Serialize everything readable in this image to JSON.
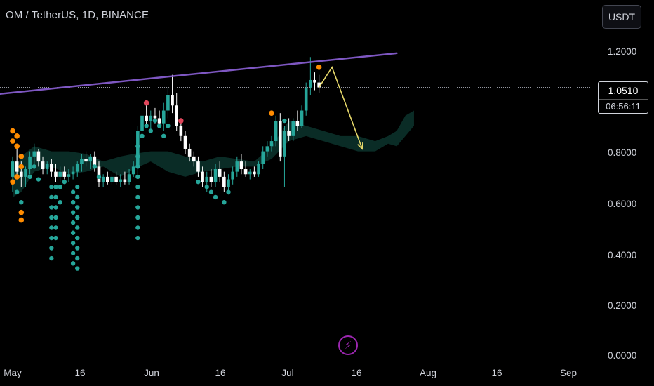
{
  "header": {
    "symbol_title": "OM / TetherUS, 1D, BINANCE",
    "currency_label": "USDT"
  },
  "price_label": {
    "price": "1.0510",
    "countdown": "06:56:11"
  },
  "icons": {
    "alert": "lightning-bolt-icon"
  },
  "colors": {
    "up": "#26a69a",
    "down": "#ffffff",
    "trendline": "#7e57c2",
    "projection": "#e6d86a",
    "dot_green": "#26a69a",
    "dot_orange": "#ff8c00",
    "dot_red": "#e0455a",
    "cloud": "#0d3b33"
  },
  "chart_data": {
    "type": "candlestick",
    "title": "OM / TetherUS, 1D, BINANCE",
    "xlabel": "",
    "ylabel": "",
    "ylim": [
      0,
      1.25
    ],
    "y_ticks": [
      "1.2000",
      "1.0510",
      "0.8000",
      "0.6000",
      "0.4000",
      "0.2000",
      "0.0000"
    ],
    "x_ticks": [
      {
        "label": "May",
        "day": 1
      },
      {
        "label": "16",
        "day": 16
      },
      {
        "label": "Jun",
        "day": 32
      },
      {
        "label": "16",
        "day": 47
      },
      {
        "label": "Jul",
        "day": 62
      },
      {
        "label": "16",
        "day": 77
      },
      {
        "label": "Aug",
        "day": 93
      },
      {
        "label": "16",
        "day": 108
      },
      {
        "label": "Sep",
        "day": 124
      }
    ],
    "last_price": 1.051,
    "candles": [
      {
        "d": 1,
        "o": 0.7,
        "h": 0.78,
        "l": 0.64,
        "c": 0.76
      },
      {
        "d": 2,
        "o": 0.76,
        "h": 0.82,
        "l": 0.7,
        "c": 0.72
      },
      {
        "d": 3,
        "o": 0.72,
        "h": 0.76,
        "l": 0.66,
        "c": 0.7
      },
      {
        "d": 4,
        "o": 0.7,
        "h": 0.74,
        "l": 0.66,
        "c": 0.73
      },
      {
        "d": 5,
        "o": 0.73,
        "h": 0.8,
        "l": 0.71,
        "c": 0.78
      },
      {
        "d": 6,
        "o": 0.78,
        "h": 0.83,
        "l": 0.75,
        "c": 0.8
      },
      {
        "d": 7,
        "o": 0.8,
        "h": 0.81,
        "l": 0.74,
        "c": 0.76
      },
      {
        "d": 8,
        "o": 0.76,
        "h": 0.78,
        "l": 0.71,
        "c": 0.73
      },
      {
        "d": 9,
        "o": 0.73,
        "h": 0.76,
        "l": 0.71,
        "c": 0.75
      },
      {
        "d": 10,
        "o": 0.75,
        "h": 0.77,
        "l": 0.7,
        "c": 0.72
      },
      {
        "d": 11,
        "o": 0.72,
        "h": 0.75,
        "l": 0.68,
        "c": 0.7
      },
      {
        "d": 12,
        "o": 0.7,
        "h": 0.74,
        "l": 0.68,
        "c": 0.72
      },
      {
        "d": 13,
        "o": 0.72,
        "h": 0.74,
        "l": 0.69,
        "c": 0.7
      },
      {
        "d": 14,
        "o": 0.7,
        "h": 0.73,
        "l": 0.68,
        "c": 0.71
      },
      {
        "d": 15,
        "o": 0.71,
        "h": 0.74,
        "l": 0.69,
        "c": 0.72
      },
      {
        "d": 16,
        "o": 0.72,
        "h": 0.76,
        "l": 0.7,
        "c": 0.75
      },
      {
        "d": 17,
        "o": 0.75,
        "h": 0.79,
        "l": 0.72,
        "c": 0.77
      },
      {
        "d": 18,
        "o": 0.77,
        "h": 0.8,
        "l": 0.74,
        "c": 0.76
      },
      {
        "d": 19,
        "o": 0.76,
        "h": 0.79,
        "l": 0.73,
        "c": 0.78
      },
      {
        "d": 20,
        "o": 0.78,
        "h": 0.8,
        "l": 0.72,
        "c": 0.74
      },
      {
        "d": 21,
        "o": 0.74,
        "h": 0.76,
        "l": 0.66,
        "c": 0.68
      },
      {
        "d": 22,
        "o": 0.68,
        "h": 0.71,
        "l": 0.66,
        "c": 0.7
      },
      {
        "d": 23,
        "o": 0.7,
        "h": 0.72,
        "l": 0.67,
        "c": 0.68
      },
      {
        "d": 24,
        "o": 0.68,
        "h": 0.71,
        "l": 0.67,
        "c": 0.7
      },
      {
        "d": 25,
        "o": 0.7,
        "h": 0.72,
        "l": 0.67,
        "c": 0.68
      },
      {
        "d": 26,
        "o": 0.68,
        "h": 0.71,
        "l": 0.66,
        "c": 0.69
      },
      {
        "d": 27,
        "o": 0.69,
        "h": 0.72,
        "l": 0.67,
        "c": 0.68
      },
      {
        "d": 28,
        "o": 0.68,
        "h": 0.73,
        "l": 0.67,
        "c": 0.71
      },
      {
        "d": 29,
        "o": 0.71,
        "h": 0.76,
        "l": 0.7,
        "c": 0.74
      },
      {
        "d": 30,
        "o": 0.74,
        "h": 0.9,
        "l": 0.7,
        "c": 0.88
      },
      {
        "d": 31,
        "o": 0.88,
        "h": 0.97,
        "l": 0.82,
        "c": 0.94
      },
      {
        "d": 32,
        "o": 0.94,
        "h": 0.98,
        "l": 0.9,
        "c": 0.92
      },
      {
        "d": 33,
        "o": 0.92,
        "h": 0.96,
        "l": 0.88,
        "c": 0.94
      },
      {
        "d": 34,
        "o": 0.94,
        "h": 0.97,
        "l": 0.91,
        "c": 0.93
      },
      {
        "d": 35,
        "o": 0.93,
        "h": 0.96,
        "l": 0.89,
        "c": 0.91
      },
      {
        "d": 36,
        "o": 0.91,
        "h": 0.99,
        "l": 0.88,
        "c": 0.96
      },
      {
        "d": 37,
        "o": 0.96,
        "h": 1.05,
        "l": 0.93,
        "c": 1.02
      },
      {
        "d": 38,
        "o": 1.02,
        "h": 1.1,
        "l": 0.95,
        "c": 0.98
      },
      {
        "d": 39,
        "o": 0.98,
        "h": 1.03,
        "l": 0.88,
        "c": 0.9
      },
      {
        "d": 40,
        "o": 0.9,
        "h": 0.93,
        "l": 0.84,
        "c": 0.86
      },
      {
        "d": 41,
        "o": 0.86,
        "h": 0.88,
        "l": 0.79,
        "c": 0.81
      },
      {
        "d": 42,
        "o": 0.81,
        "h": 0.83,
        "l": 0.76,
        "c": 0.78
      },
      {
        "d": 43,
        "o": 0.78,
        "h": 0.8,
        "l": 0.74,
        "c": 0.76
      },
      {
        "d": 44,
        "o": 0.76,
        "h": 0.78,
        "l": 0.7,
        "c": 0.72
      },
      {
        "d": 45,
        "o": 0.72,
        "h": 0.74,
        "l": 0.66,
        "c": 0.68
      },
      {
        "d": 46,
        "o": 0.68,
        "h": 0.72,
        "l": 0.64,
        "c": 0.7
      },
      {
        "d": 47,
        "o": 0.7,
        "h": 0.73,
        "l": 0.66,
        "c": 0.68
      },
      {
        "d": 48,
        "o": 0.68,
        "h": 0.75,
        "l": 0.66,
        "c": 0.73
      },
      {
        "d": 49,
        "o": 0.73,
        "h": 0.76,
        "l": 0.68,
        "c": 0.7
      },
      {
        "d": 50,
        "o": 0.7,
        "h": 0.72,
        "l": 0.64,
        "c": 0.66
      },
      {
        "d": 51,
        "o": 0.66,
        "h": 0.71,
        "l": 0.63,
        "c": 0.69
      },
      {
        "d": 52,
        "o": 0.69,
        "h": 0.74,
        "l": 0.67,
        "c": 0.72
      },
      {
        "d": 53,
        "o": 0.72,
        "h": 0.78,
        "l": 0.7,
        "c": 0.76
      },
      {
        "d": 54,
        "o": 0.76,
        "h": 0.79,
        "l": 0.71,
        "c": 0.73
      },
      {
        "d": 55,
        "o": 0.73,
        "h": 0.76,
        "l": 0.7,
        "c": 0.71
      },
      {
        "d": 56,
        "o": 0.71,
        "h": 0.73,
        "l": 0.69,
        "c": 0.72
      },
      {
        "d": 57,
        "o": 0.72,
        "h": 0.74,
        "l": 0.7,
        "c": 0.71
      },
      {
        "d": 58,
        "o": 0.71,
        "h": 0.76,
        "l": 0.7,
        "c": 0.75
      },
      {
        "d": 59,
        "o": 0.75,
        "h": 0.82,
        "l": 0.73,
        "c": 0.8
      },
      {
        "d": 60,
        "o": 0.8,
        "h": 0.84,
        "l": 0.78,
        "c": 0.82
      },
      {
        "d": 61,
        "o": 0.82,
        "h": 0.86,
        "l": 0.8,
        "c": 0.84
      },
      {
        "d": 62,
        "o": 0.84,
        "h": 0.94,
        "l": 0.82,
        "c": 0.92
      },
      {
        "d": 63,
        "o": 0.92,
        "h": 0.95,
        "l": 0.76,
        "c": 0.78
      },
      {
        "d": 64,
        "o": 0.78,
        "h": 0.9,
        "l": 0.66,
        "c": 0.88
      },
      {
        "d": 65,
        "o": 0.88,
        "h": 0.93,
        "l": 0.84,
        "c": 0.86
      },
      {
        "d": 66,
        "o": 0.86,
        "h": 0.93,
        "l": 0.84,
        "c": 0.92
      },
      {
        "d": 67,
        "o": 0.92,
        "h": 0.96,
        "l": 0.88,
        "c": 0.9
      },
      {
        "d": 68,
        "o": 0.9,
        "h": 0.98,
        "l": 0.89,
        "c": 0.96
      },
      {
        "d": 69,
        "o": 0.96,
        "h": 1.07,
        "l": 0.94,
        "c": 1.05
      },
      {
        "d": 70,
        "o": 1.05,
        "h": 1.17,
        "l": 1.02,
        "c": 1.08
      },
      {
        "d": 71,
        "o": 1.08,
        "h": 1.11,
        "l": 1.04,
        "c": 1.07
      },
      {
        "d": 72,
        "o": 1.07,
        "h": 1.1,
        "l": 1.03,
        "c": 1.051
      }
    ],
    "cloud": [
      {
        "d": 1,
        "a": 0.62,
        "b": 0.7
      },
      {
        "d": 3,
        "a": 0.64,
        "b": 0.78
      },
      {
        "d": 6,
        "a": 0.72,
        "b": 0.82
      },
      {
        "d": 10,
        "a": 0.74,
        "b": 0.8
      },
      {
        "d": 14,
        "a": 0.71,
        "b": 0.8
      },
      {
        "d": 18,
        "a": 0.72,
        "b": 0.79
      },
      {
        "d": 22,
        "a": 0.74,
        "b": 0.76
      },
      {
        "d": 26,
        "a": 0.7,
        "b": 0.78
      },
      {
        "d": 29,
        "a": 0.73,
        "b": 0.79
      },
      {
        "d": 33,
        "a": 0.76,
        "b": 0.8
      },
      {
        "d": 37,
        "a": 0.72,
        "b": 0.8
      },
      {
        "d": 41,
        "a": 0.7,
        "b": 0.78
      },
      {
        "d": 45,
        "a": 0.72,
        "b": 0.76
      },
      {
        "d": 49,
        "a": 0.73,
        "b": 0.78
      },
      {
        "d": 53,
        "a": 0.74,
        "b": 0.77
      },
      {
        "d": 57,
        "a": 0.74,
        "b": 0.76
      },
      {
        "d": 61,
        "a": 0.77,
        "b": 0.82
      },
      {
        "d": 65,
        "a": 0.84,
        "b": 0.92
      },
      {
        "d": 69,
        "a": 0.86,
        "b": 0.9
      },
      {
        "d": 73,
        "a": 0.84,
        "b": 0.88
      },
      {
        "d": 77,
        "a": 0.82,
        "b": 0.86
      },
      {
        "d": 81,
        "a": 0.8,
        "b": 0.86
      },
      {
        "d": 85,
        "a": 0.8,
        "b": 0.84
      },
      {
        "d": 88,
        "a": 0.83,
        "b": 0.86
      },
      {
        "d": 90,
        "a": 0.82,
        "b": 0.88
      },
      {
        "d": 92,
        "a": 0.86,
        "b": 0.94
      },
      {
        "d": 94,
        "a": 0.9,
        "b": 0.96
      }
    ],
    "trendline": [
      {
        "d": -5,
        "v": 1.02
      },
      {
        "d": 90,
        "v": 1.185
      }
    ],
    "projection": [
      {
        "d": 72,
        "v": 1.051
      },
      {
        "d": 75,
        "v": 1.13
      },
      {
        "d": 82,
        "v": 0.81
      }
    ],
    "dots": [
      {
        "d": 1,
        "v": 0.88,
        "c": "orange"
      },
      {
        "d": 1,
        "v": 0.84,
        "c": "orange"
      },
      {
        "d": 2,
        "v": 0.86,
        "c": "orange"
      },
      {
        "d": 2,
        "v": 0.82,
        "c": "orange"
      },
      {
        "d": 3,
        "v": 0.78,
        "c": "orange"
      },
      {
        "d": 3,
        "v": 0.74,
        "c": "orange"
      },
      {
        "d": 2,
        "v": 0.7,
        "c": "orange"
      },
      {
        "d": 1,
        "v": 0.68,
        "c": "orange"
      },
      {
        "d": 2,
        "v": 0.64,
        "c": "green"
      },
      {
        "d": 3,
        "v": 0.6,
        "c": "green"
      },
      {
        "d": 3,
        "v": 0.56,
        "c": "orange"
      },
      {
        "d": 3,
        "v": 0.53,
        "c": "orange"
      },
      {
        "d": 5,
        "v": 0.7,
        "c": "green"
      },
      {
        "d": 6,
        "v": 0.74,
        "c": "green"
      },
      {
        "d": 7,
        "v": 0.69,
        "c": "green"
      },
      {
        "d": 10,
        "v": 0.66,
        "c": "green"
      },
      {
        "d": 10,
        "v": 0.62,
        "c": "green"
      },
      {
        "d": 10,
        "v": 0.58,
        "c": "green"
      },
      {
        "d": 10,
        "v": 0.54,
        "c": "green"
      },
      {
        "d": 10,
        "v": 0.5,
        "c": "green"
      },
      {
        "d": 10,
        "v": 0.46,
        "c": "green"
      },
      {
        "d": 10,
        "v": 0.42,
        "c": "green"
      },
      {
        "d": 10,
        "v": 0.38,
        "c": "green"
      },
      {
        "d": 11,
        "v": 0.66,
        "c": "green"
      },
      {
        "d": 11,
        "v": 0.62,
        "c": "green"
      },
      {
        "d": 11,
        "v": 0.58,
        "c": "green"
      },
      {
        "d": 11,
        "v": 0.54,
        "c": "green"
      },
      {
        "d": 11,
        "v": 0.5,
        "c": "green"
      },
      {
        "d": 11,
        "v": 0.46,
        "c": "green"
      },
      {
        "d": 12,
        "v": 0.66,
        "c": "green"
      },
      {
        "d": 12,
        "v": 0.6,
        "c": "green"
      },
      {
        "d": 13,
        "v": 0.68,
        "c": "green"
      },
      {
        "d": 15,
        "v": 0.64,
        "c": "green"
      },
      {
        "d": 15,
        "v": 0.6,
        "c": "green"
      },
      {
        "d": 15,
        "v": 0.56,
        "c": "green"
      },
      {
        "d": 15,
        "v": 0.52,
        "c": "green"
      },
      {
        "d": 15,
        "v": 0.48,
        "c": "green"
      },
      {
        "d": 15,
        "v": 0.44,
        "c": "green"
      },
      {
        "d": 15,
        "v": 0.4,
        "c": "green"
      },
      {
        "d": 15,
        "v": 0.36,
        "c": "green"
      },
      {
        "d": 16,
        "v": 0.66,
        "c": "green"
      },
      {
        "d": 16,
        "v": 0.62,
        "c": "green"
      },
      {
        "d": 16,
        "v": 0.58,
        "c": "green"
      },
      {
        "d": 16,
        "v": 0.54,
        "c": "green"
      },
      {
        "d": 16,
        "v": 0.5,
        "c": "green"
      },
      {
        "d": 16,
        "v": 0.46,
        "c": "green"
      },
      {
        "d": 16,
        "v": 0.42,
        "c": "green"
      },
      {
        "d": 16,
        "v": 0.38,
        "c": "green"
      },
      {
        "d": 16,
        "v": 0.34,
        "c": "green"
      },
      {
        "d": 20,
        "v": 0.74,
        "c": "green"
      },
      {
        "d": 21,
        "v": 0.7,
        "c": "green"
      },
      {
        "d": 30,
        "v": 0.82,
        "c": "green"
      },
      {
        "d": 30,
        "v": 0.78,
        "c": "green"
      },
      {
        "d": 30,
        "v": 0.74,
        "c": "green"
      },
      {
        "d": 30,
        "v": 0.7,
        "c": "green"
      },
      {
        "d": 30,
        "v": 0.66,
        "c": "green"
      },
      {
        "d": 30,
        "v": 0.62,
        "c": "green"
      },
      {
        "d": 30,
        "v": 0.58,
        "c": "green"
      },
      {
        "d": 30,
        "v": 0.54,
        "c": "green"
      },
      {
        "d": 30,
        "v": 0.5,
        "c": "green"
      },
      {
        "d": 30,
        "v": 0.46,
        "c": "green"
      },
      {
        "d": 31,
        "v": 0.86,
        "c": "green"
      },
      {
        "d": 32,
        "v": 0.9,
        "c": "green"
      },
      {
        "d": 33,
        "v": 0.88,
        "c": "green"
      },
      {
        "d": 34,
        "v": 0.92,
        "c": "green"
      },
      {
        "d": 35,
        "v": 0.9,
        "c": "green"
      },
      {
        "d": 36,
        "v": 0.86,
        "c": "green"
      },
      {
        "d": 37,
        "v": 0.9,
        "c": "green"
      },
      {
        "d": 32,
        "v": 0.99,
        "c": "red"
      },
      {
        "d": 40,
        "v": 0.92,
        "c": "red"
      },
      {
        "d": 44,
        "v": 0.68,
        "c": "green"
      },
      {
        "d": 46,
        "v": 0.66,
        "c": "green"
      },
      {
        "d": 47,
        "v": 0.64,
        "c": "green"
      },
      {
        "d": 48,
        "v": 0.62,
        "c": "green"
      },
      {
        "d": 50,
        "v": 0.6,
        "c": "green"
      },
      {
        "d": 51,
        "v": 0.64,
        "c": "green"
      },
      {
        "d": 61,
        "v": 0.95,
        "c": "orange"
      },
      {
        "d": 64,
        "v": 0.92,
        "c": "green"
      },
      {
        "d": 72,
        "v": 1.13,
        "c": "orange"
      }
    ]
  }
}
